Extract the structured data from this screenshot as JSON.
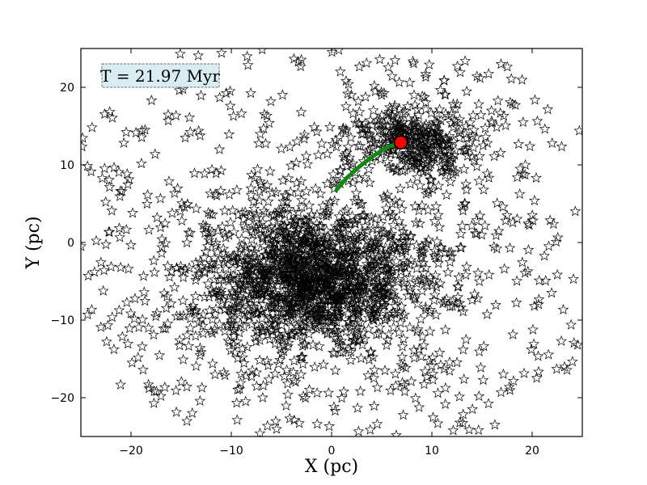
{
  "chart_data": {
    "type": "scatter",
    "xlabel": "X (pc)",
    "ylabel": "Y (pc)",
    "xlim": [
      -25,
      25
    ],
    "ylim": [
      -25,
      25
    ],
    "xticks": [
      -20,
      -10,
      0,
      10,
      20
    ],
    "yticks": [
      -20,
      -10,
      0,
      10,
      20
    ],
    "xtick_labels": [
      "−20",
      "−10",
      "0",
      "10",
      "20"
    ],
    "ytick_labels": [
      "−20",
      "−10",
      "0",
      "10",
      "20"
    ],
    "grid": false,
    "annotation": {
      "text": "T = 21.97 Myr",
      "position": "top-left",
      "facecolor": "#d8ecf2"
    },
    "marker": "open-star",
    "series": [
      {
        "role": "field-stars",
        "marker": "open-star",
        "color": "#000000",
        "clusters": [
          {
            "center": [
              -2.0,
              -4.5
            ],
            "spread": 6.0,
            "count": 1600,
            "distribution": "dense-core"
          },
          {
            "center": [
              8.5,
              13.0
            ],
            "spread": 3.2,
            "count": 380,
            "distribution": "dense-core"
          },
          {
            "center": [
              0.0,
              0.0
            ],
            "spread": 25.0,
            "count": 650,
            "distribution": "diffuse"
          }
        ]
      },
      {
        "role": "orbit-track",
        "color": "#118811",
        "points": [
          [
            0.5,
            6.8
          ],
          [
            1.5,
            8.3
          ],
          [
            2.8,
            9.8
          ],
          [
            4.2,
            11.2
          ],
          [
            5.6,
            12.3
          ],
          [
            6.9,
            12.9
          ]
        ]
      },
      {
        "role": "current-position",
        "marker": "circle",
        "color": "#ff0000",
        "points": [
          [
            6.9,
            12.9
          ]
        ]
      }
    ]
  }
}
